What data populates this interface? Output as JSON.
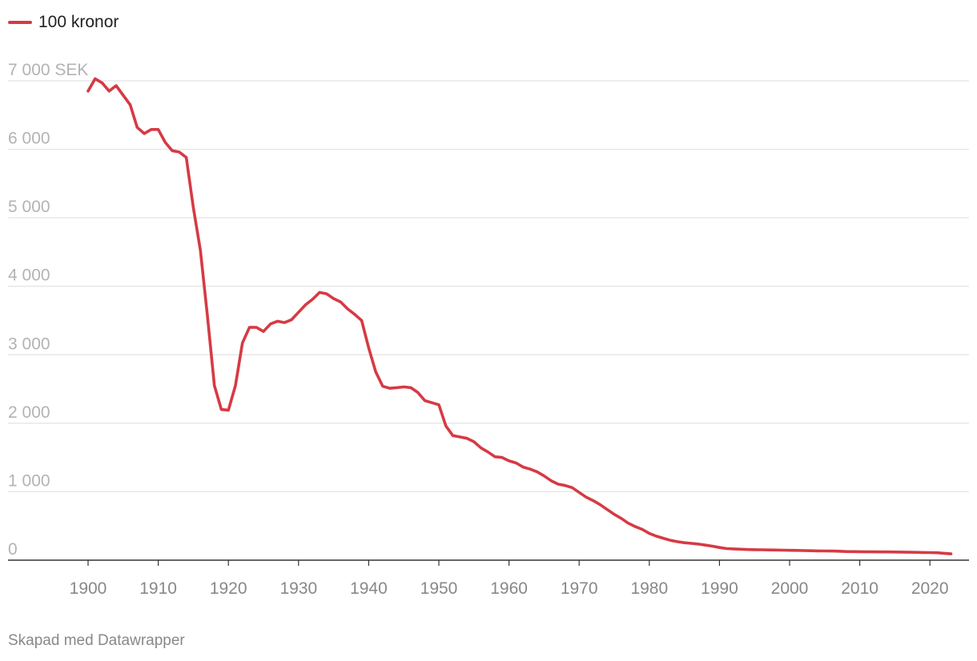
{
  "legend": {
    "label": "100 kronor",
    "color": "#d63a44"
  },
  "footer": "Skapad med Datawrapper",
  "chart_data": {
    "type": "line",
    "title": "",
    "xlabel": "",
    "ylabel": "",
    "xlim": [
      1900,
      2023
    ],
    "ylim": [
      0,
      7000
    ],
    "y_unit": "SEK",
    "grid": true,
    "legend_position": "top-left",
    "y_ticks": [
      {
        "value": 0,
        "label": "0"
      },
      {
        "value": 1000,
        "label": "1 000"
      },
      {
        "value": 2000,
        "label": "2 000"
      },
      {
        "value": 3000,
        "label": "3 000"
      },
      {
        "value": 4000,
        "label": "4 000"
      },
      {
        "value": 5000,
        "label": "5 000"
      },
      {
        "value": 6000,
        "label": "6 000"
      },
      {
        "value": 7000,
        "label": "7 000 SEK"
      }
    ],
    "x_ticks": [
      1900,
      1910,
      1920,
      1930,
      1940,
      1950,
      1960,
      1970,
      1980,
      1990,
      2000,
      2010,
      2020
    ],
    "series": [
      {
        "name": "100 kronor",
        "color": "#d63a44",
        "points": [
          [
            1900,
            6850
          ],
          [
            1901,
            7030
          ],
          [
            1902,
            6970
          ],
          [
            1903,
            6850
          ],
          [
            1904,
            6930
          ],
          [
            1905,
            6790
          ],
          [
            1906,
            6650
          ],
          [
            1907,
            6320
          ],
          [
            1908,
            6230
          ],
          [
            1909,
            6290
          ],
          [
            1910,
            6290
          ],
          [
            1911,
            6100
          ],
          [
            1912,
            5980
          ],
          [
            1913,
            5960
          ],
          [
            1914,
            5880
          ],
          [
            1915,
            5150
          ],
          [
            1916,
            4530
          ],
          [
            1917,
            3580
          ],
          [
            1918,
            2550
          ],
          [
            1919,
            2200
          ],
          [
            1920,
            2190
          ],
          [
            1921,
            2550
          ],
          [
            1922,
            3170
          ],
          [
            1923,
            3400
          ],
          [
            1924,
            3400
          ],
          [
            1925,
            3340
          ],
          [
            1926,
            3450
          ],
          [
            1927,
            3490
          ],
          [
            1928,
            3470
          ],
          [
            1929,
            3510
          ],
          [
            1930,
            3620
          ],
          [
            1931,
            3730
          ],
          [
            1932,
            3810
          ],
          [
            1933,
            3910
          ],
          [
            1934,
            3890
          ],
          [
            1935,
            3820
          ],
          [
            1936,
            3770
          ],
          [
            1937,
            3670
          ],
          [
            1938,
            3590
          ],
          [
            1939,
            3500
          ],
          [
            1940,
            3100
          ],
          [
            1941,
            2750
          ],
          [
            1942,
            2540
          ],
          [
            1943,
            2510
          ],
          [
            1944,
            2520
          ],
          [
            1945,
            2530
          ],
          [
            1946,
            2520
          ],
          [
            1947,
            2450
          ],
          [
            1948,
            2330
          ],
          [
            1949,
            2300
          ],
          [
            1950,
            2270
          ],
          [
            1951,
            1960
          ],
          [
            1952,
            1820
          ],
          [
            1953,
            1800
          ],
          [
            1954,
            1780
          ],
          [
            1955,
            1730
          ],
          [
            1956,
            1640
          ],
          [
            1957,
            1580
          ],
          [
            1958,
            1510
          ],
          [
            1959,
            1500
          ],
          [
            1960,
            1450
          ],
          [
            1961,
            1420
          ],
          [
            1962,
            1360
          ],
          [
            1963,
            1330
          ],
          [
            1964,
            1290
          ],
          [
            1965,
            1230
          ],
          [
            1966,
            1160
          ],
          [
            1967,
            1110
          ],
          [
            1968,
            1090
          ],
          [
            1969,
            1060
          ],
          [
            1970,
            990
          ],
          [
            1971,
            920
          ],
          [
            1972,
            870
          ],
          [
            1973,
            810
          ],
          [
            1974,
            740
          ],
          [
            1975,
            670
          ],
          [
            1976,
            610
          ],
          [
            1977,
            540
          ],
          [
            1978,
            490
          ],
          [
            1979,
            450
          ],
          [
            1980,
            390
          ],
          [
            1981,
            350
          ],
          [
            1982,
            320
          ],
          [
            1983,
            290
          ],
          [
            1984,
            270
          ],
          [
            1985,
            255
          ],
          [
            1986,
            245
          ],
          [
            1987,
            235
          ],
          [
            1988,
            220
          ],
          [
            1989,
            205
          ],
          [
            1990,
            185
          ],
          [
            1991,
            170
          ],
          [
            1992,
            165
          ],
          [
            1993,
            160
          ],
          [
            1994,
            155
          ],
          [
            1995,
            153
          ],
          [
            1996,
            152
          ],
          [
            1997,
            150
          ],
          [
            1998,
            148
          ],
          [
            1999,
            146
          ],
          [
            2000,
            144
          ],
          [
            2001,
            142
          ],
          [
            2002,
            140
          ],
          [
            2003,
            138
          ],
          [
            2004,
            136
          ],
          [
            2005,
            134
          ],
          [
            2006,
            133
          ],
          [
            2007,
            131
          ],
          [
            2008,
            126
          ],
          [
            2009,
            125
          ],
          [
            2010,
            124
          ],
          [
            2011,
            122
          ],
          [
            2012,
            121
          ],
          [
            2013,
            120
          ],
          [
            2014,
            120
          ],
          [
            2015,
            119
          ],
          [
            2016,
            118
          ],
          [
            2017,
            116
          ],
          [
            2018,
            114
          ],
          [
            2019,
            112
          ],
          [
            2020,
            111
          ],
          [
            2021,
            109
          ],
          [
            2022,
            100
          ],
          [
            2023,
            92
          ]
        ]
      }
    ]
  }
}
